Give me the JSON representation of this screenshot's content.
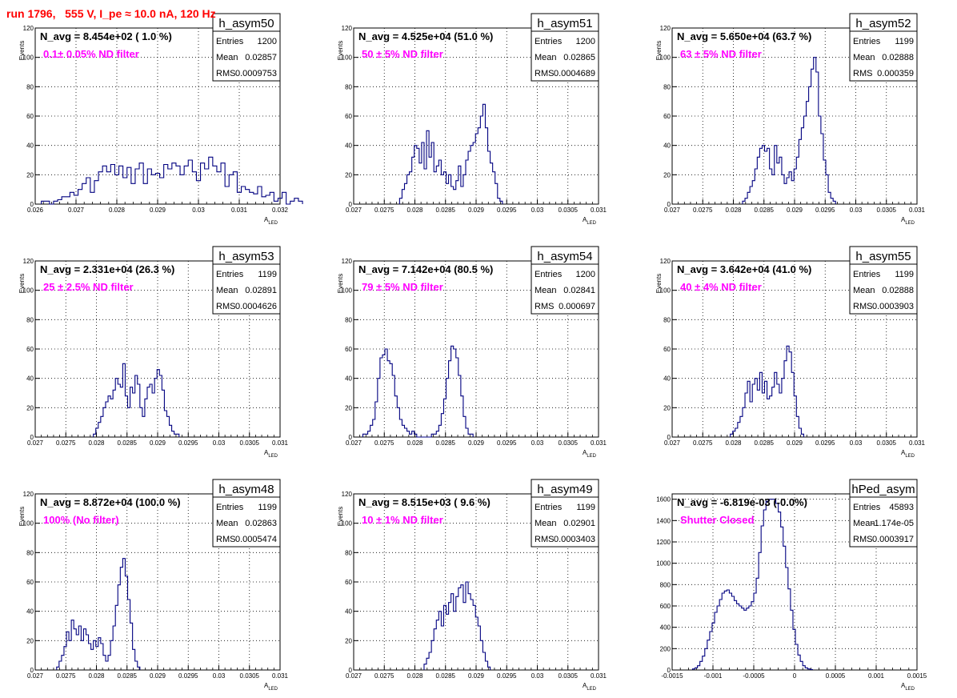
{
  "run_title": "run 1796,   555 V, I_pe ≈ 10.0 nA, 120 Hz",
  "colors": {
    "histogram_line": "#000080",
    "filter_text": "#ff00ff",
    "run_title": "#ff0000",
    "frame": "#000000",
    "grid": "#000000"
  },
  "chart_data": [
    {
      "type": "histogram",
      "name": "h_asym50",
      "xlabel": "A",
      "xlabel_sub": "LED",
      "ylabel": "Events",
      "navg_text": "N_avg = 8.454e+02 ( 1.0 %)",
      "filter_text": "0.1± 0.05% ND filter",
      "stats": {
        "entries": "1200",
        "mean": "0.02857",
        "rms": "0.0009753"
      },
      "xlim": [
        0.026,
        0.032
      ],
      "ylim": [
        0,
        120
      ],
      "grid": true,
      "xticks": [
        0.026,
        0.027,
        0.028,
        0.029,
        0.03,
        0.031,
        0.032
      ],
      "xtick_labels": [
        "0.026",
        "0.027",
        "0.028",
        "0.029",
        "0.03",
        "0.031",
        "0.032"
      ],
      "yticks": [
        0,
        20,
        40,
        60,
        80,
        100,
        120
      ],
      "ytick_labels": [
        "0",
        "20",
        "40",
        "60",
        "80",
        "100",
        "120"
      ],
      "bins_start": 0.02615,
      "bin_width": 0.0001,
      "counts": [
        2,
        2,
        0,
        2,
        3,
        5,
        5,
        8,
        6,
        10,
        14,
        18,
        8,
        16,
        22,
        26,
        22,
        27,
        20,
        26,
        18,
        25,
        14,
        24,
        28,
        14,
        24,
        20,
        21,
        18,
        27,
        24,
        28,
        26,
        20,
        26,
        30,
        22,
        16,
        28,
        24,
        32,
        26,
        22,
        28,
        12,
        20,
        22,
        8,
        12,
        10,
        8,
        7,
        12,
        5,
        6,
        8,
        2,
        4,
        8,
        0,
        2,
        4,
        2
      ]
    },
    {
      "type": "histogram",
      "name": "h_asym51",
      "xlabel": "A",
      "xlabel_sub": "LED",
      "ylabel": "Events",
      "navg_text": "N_avg = 4.525e+04 (51.0 %)",
      "filter_text": "50 ± 5% ND filter",
      "stats": {
        "entries": "1200",
        "mean": "0.02865",
        "rms": "0.0004689"
      },
      "xlim": [
        0.027,
        0.031
      ],
      "ylim": [
        0,
        120
      ],
      "grid": true,
      "xticks": [
        0.027,
        0.0275,
        0.028,
        0.0285,
        0.029,
        0.0295,
        0.03,
        0.0305,
        0.031
      ],
      "xtick_labels": [
        "0.027",
        "0.0275",
        "0.028",
        "0.0285",
        "0.029",
        "0.0295",
        "0.03",
        "0.0305",
        "0.031"
      ],
      "yticks": [
        0,
        20,
        40,
        60,
        80,
        100,
        120
      ],
      "ytick_labels": [
        "0",
        "20",
        "40",
        "60",
        "80",
        "100",
        "120"
      ],
      "bins_start": 0.02775,
      "bin_width": 4e-05,
      "counts": [
        4,
        10,
        14,
        20,
        22,
        32,
        40,
        38,
        28,
        42,
        24,
        50,
        32,
        42,
        22,
        26,
        30,
        20,
        22,
        14,
        20,
        12,
        10,
        16,
        26,
        12,
        20,
        30,
        36,
        40,
        42,
        48,
        52,
        60,
        68,
        52,
        36,
        28,
        22,
        14,
        4,
        2
      ]
    },
    {
      "type": "histogram",
      "name": "h_asym52",
      "xlabel": "A",
      "xlabel_sub": "LED",
      "ylabel": "Events",
      "navg_text": "N_avg = 5.650e+04 (63.7 %)",
      "filter_text": "63 ± 5% ND filter",
      "stats": {
        "entries": "1199",
        "mean": "0.02888",
        "rms": "0.000359"
      },
      "xlim": [
        0.027,
        0.031
      ],
      "ylim": [
        0,
        120
      ],
      "grid": true,
      "xticks": [
        0.027,
        0.0275,
        0.028,
        0.0285,
        0.029,
        0.0295,
        0.03,
        0.0305,
        0.031
      ],
      "xtick_labels": [
        "0.027",
        "0.0275",
        "0.028",
        "0.0285",
        "0.029",
        "0.0295",
        "0.03",
        "0.0305",
        "0.031"
      ],
      "yticks": [
        0,
        20,
        40,
        60,
        80,
        100,
        120
      ],
      "ytick_labels": [
        "0",
        "20",
        "40",
        "60",
        "80",
        "100",
        "120"
      ],
      "bins_start": 0.02815,
      "bin_width": 4e-05,
      "counts": [
        2,
        4,
        8,
        12,
        16,
        24,
        32,
        38,
        40,
        36,
        38,
        24,
        20,
        40,
        28,
        32,
        20,
        14,
        18,
        22,
        16,
        24,
        32,
        44,
        52,
        60,
        70,
        80,
        92,
        100,
        90,
        60,
        48,
        30,
        20,
        8,
        4,
        2
      ]
    },
    {
      "type": "histogram",
      "name": "h_asym53",
      "xlabel": "A",
      "xlabel_sub": "LED",
      "ylabel": "Events",
      "navg_text": "N_avg = 2.331e+04 (26.3 %)",
      "filter_text": "25 ± 2.5% ND filter",
      "stats": {
        "entries": "1199",
        "mean": "0.02891",
        "rms": "0.0004626"
      },
      "xlim": [
        0.027,
        0.031
      ],
      "ylim": [
        0,
        120
      ],
      "grid": true,
      "xticks": [
        0.027,
        0.0275,
        0.028,
        0.0285,
        0.029,
        0.0295,
        0.03,
        0.0305,
        0.031
      ],
      "xtick_labels": [
        "0.027",
        "0.0275",
        "0.028",
        "0.0285",
        "0.029",
        "0.0295",
        "0.03",
        "0.0305",
        "0.031"
      ],
      "yticks": [
        0,
        20,
        40,
        60,
        80,
        100,
        120
      ],
      "ytick_labels": [
        "0",
        "20",
        "40",
        "60",
        "80",
        "100",
        "120"
      ],
      "bins_start": 0.02795,
      "bin_width": 4e-05,
      "counts": [
        2,
        6,
        10,
        14,
        20,
        24,
        28,
        26,
        32,
        40,
        36,
        34,
        50,
        28,
        20,
        34,
        30,
        42,
        36,
        20,
        14,
        26,
        34,
        36,
        30,
        40,
        46,
        42,
        32,
        18,
        14,
        8,
        4,
        2,
        2
      ]
    },
    {
      "type": "histogram",
      "name": "h_asym54",
      "xlabel": "A",
      "xlabel_sub": "LED",
      "ylabel": "Events",
      "navg_text": "N_avg = 7.142e+04 (80.5 %)",
      "filter_text": "79 ± 5% ND filter",
      "stats": {
        "entries": "1200",
        "mean": "0.02841",
        "rms": "0.000697"
      },
      "xlim": [
        0.027,
        0.031
      ],
      "ylim": [
        0,
        120
      ],
      "grid": true,
      "xticks": [
        0.027,
        0.0275,
        0.028,
        0.0285,
        0.029,
        0.0295,
        0.03,
        0.0305,
        0.031
      ],
      "xtick_labels": [
        "0.027",
        "0.0275",
        "0.028",
        "0.0285",
        "0.029",
        "0.0295",
        "0.03",
        "0.0305",
        "0.031"
      ],
      "yticks": [
        0,
        20,
        40,
        60,
        80,
        100,
        120
      ],
      "ytick_labels": [
        "0",
        "20",
        "40",
        "60",
        "80",
        "100",
        "120"
      ],
      "bins_start": 0.02715,
      "bin_width": 4e-05,
      "counts": [
        2,
        2,
        4,
        8,
        12,
        24,
        40,
        54,
        56,
        60,
        52,
        50,
        42,
        28,
        20,
        12,
        8,
        6,
        4,
        2,
        4,
        2,
        0,
        0,
        0,
        0,
        0,
        0,
        2,
        2,
        4,
        8,
        16,
        26,
        40,
        52,
        62,
        60,
        54,
        42,
        28,
        14,
        6,
        2,
        2
      ]
    },
    {
      "type": "histogram",
      "name": "h_asym55",
      "xlabel": "A",
      "xlabel_sub": "LED",
      "ylabel": "Events",
      "navg_text": "N_avg = 3.642e+04 (41.0 %)",
      "filter_text": "40 ± 4% ND filter",
      "stats": {
        "entries": "1199",
        "mean": "0.02888",
        "rms": "0.0003903"
      },
      "xlim": [
        0.027,
        0.031
      ],
      "ylim": [
        0,
        120
      ],
      "grid": true,
      "xticks": [
        0.027,
        0.0275,
        0.028,
        0.0285,
        0.029,
        0.0295,
        0.03,
        0.0305,
        0.031
      ],
      "xtick_labels": [
        "0.027",
        "0.0275",
        "0.028",
        "0.0285",
        "0.029",
        "0.0295",
        "0.03",
        "0.0305",
        "0.031"
      ],
      "yticks": [
        0,
        20,
        40,
        60,
        80,
        100,
        120
      ],
      "ytick_labels": [
        "0",
        "20",
        "40",
        "60",
        "80",
        "100",
        "120"
      ],
      "bins_start": 0.02795,
      "bin_width": 4e-05,
      "counts": [
        2,
        4,
        6,
        10,
        14,
        20,
        30,
        38,
        24,
        36,
        40,
        32,
        44,
        30,
        38,
        26,
        28,
        34,
        44,
        36,
        30,
        40,
        52,
        62,
        58,
        44,
        28,
        14,
        6,
        2
      ]
    },
    {
      "type": "histogram",
      "name": "h_asym48",
      "xlabel": "A",
      "xlabel_sub": "LED",
      "ylabel": "Events",
      "navg_text": "N_avg = 8.872e+04 (100.0 %)",
      "filter_text": "100% (No filter)",
      "stats": {
        "entries": "1199",
        "mean": "0.02863",
        "rms": "0.0005474"
      },
      "xlim": [
        0.027,
        0.031
      ],
      "ylim": [
        0,
        120
      ],
      "grid": true,
      "xticks": [
        0.027,
        0.0275,
        0.028,
        0.0285,
        0.029,
        0.0295,
        0.03,
        0.0305,
        0.031
      ],
      "xtick_labels": [
        "0.027",
        "0.0275",
        "0.028",
        "0.0285",
        "0.029",
        "0.0295",
        "0.03",
        "0.0305",
        "0.031"
      ],
      "yticks": [
        0,
        20,
        40,
        60,
        80,
        100,
        120
      ],
      "ytick_labels": [
        "0",
        "20",
        "40",
        "60",
        "80",
        "100",
        "120"
      ],
      "bins_start": 0.02735,
      "bin_width": 4e-05,
      "counts": [
        2,
        6,
        10,
        16,
        26,
        20,
        34,
        28,
        24,
        30,
        20,
        28,
        24,
        18,
        14,
        20,
        16,
        22,
        18,
        10,
        6,
        10,
        20,
        30,
        44,
        58,
        70,
        76,
        64,
        48,
        32,
        14,
        6,
        2
      ]
    },
    {
      "type": "histogram",
      "name": "h_asym49",
      "xlabel": "A",
      "xlabel_sub": "LED",
      "ylabel": "Events",
      "navg_text": "N_avg = 8.515e+03 ( 9.6 %)",
      "filter_text": "10 ± 1% ND filter",
      "stats": {
        "entries": "1199",
        "mean": "0.02901",
        "rms": "0.0003403"
      },
      "xlim": [
        0.027,
        0.031
      ],
      "ylim": [
        0,
        120
      ],
      "grid": true,
      "xticks": [
        0.027,
        0.0275,
        0.028,
        0.0285,
        0.029,
        0.0295,
        0.03,
        0.0305,
        0.031
      ],
      "xtick_labels": [
        "0.027",
        "0.0275",
        "0.028",
        "0.0285",
        "0.029",
        "0.0295",
        "0.03",
        "0.0305",
        "0.031"
      ],
      "yticks": [
        0,
        20,
        40,
        60,
        80,
        100,
        120
      ],
      "ytick_labels": [
        "0",
        "20",
        "40",
        "60",
        "80",
        "100",
        "120"
      ],
      "bins_start": 0.02815,
      "bin_width": 4e-05,
      "counts": [
        4,
        8,
        12,
        20,
        28,
        34,
        40,
        30,
        44,
        38,
        46,
        52,
        40,
        50,
        56,
        58,
        46,
        60,
        52,
        48,
        44,
        36,
        30,
        20,
        12,
        6,
        2
      ]
    },
    {
      "type": "histogram",
      "name": "hPed_asym",
      "xlabel": "A",
      "xlabel_sub": "LED",
      "ylabel": "",
      "navg_text": "N_avg = -6.819e-03 (-0.0%)",
      "filter_text": "Shutter Closed",
      "stats": {
        "entries": "45893",
        "mean": "-1.174e-05",
        "rms": "0.0003917"
      },
      "xlim": [
        -0.0015,
        0.0015
      ],
      "ylim": [
        0,
        1650
      ],
      "grid": true,
      "xticks": [
        -0.0015,
        -0.001,
        -0.0005,
        0,
        0.0005,
        0.001,
        0.0015
      ],
      "xtick_labels": [
        "-0.0015",
        "-0.001",
        "-0.0005",
        "0",
        "0.0005",
        "0.001",
        "0.0015"
      ],
      "yticks": [
        0,
        200,
        400,
        600,
        800,
        1000,
        1200,
        1400,
        1600
      ],
      "ytick_labels": [
        "0",
        "200",
        "400",
        "600",
        "800",
        "1000",
        "1200",
        "1400",
        "1600"
      ],
      "bins_start": -0.00125,
      "bin_width": 3e-05,
      "counts": [
        10,
        20,
        40,
        80,
        130,
        200,
        280,
        360,
        440,
        540,
        600,
        660,
        720,
        740,
        750,
        720,
        690,
        650,
        620,
        600,
        580,
        560,
        580,
        600,
        640,
        720,
        860,
        1100,
        1350,
        1500,
        1580,
        1600,
        1600,
        1600,
        1560,
        1480,
        1340,
        1160,
        960,
        760,
        560,
        380,
        240,
        140,
        80,
        40,
        20,
        10,
        4
      ]
    }
  ]
}
